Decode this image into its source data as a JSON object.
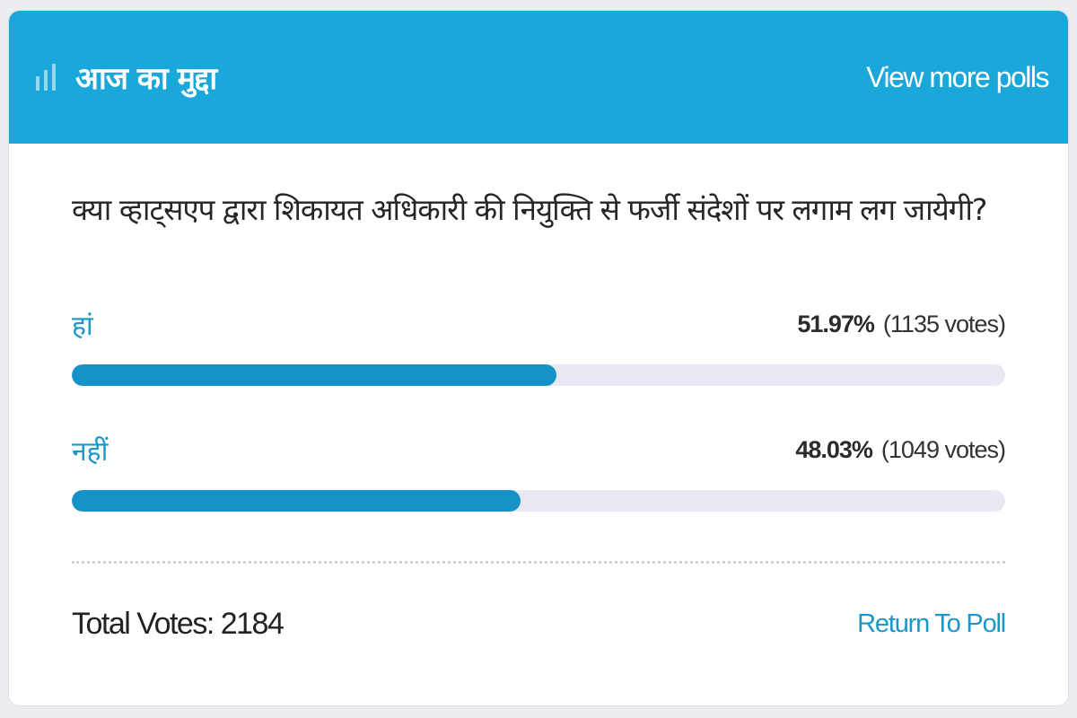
{
  "header": {
    "icon": "poll-bars-icon",
    "title": "आज का मुद्दा",
    "view_more_label": "View more polls"
  },
  "poll": {
    "question": "क्या व्हाट्सएप द्वारा शिकायत अधिकारी की नियुक्ति से फर्जी संदेशों पर लगाम लग जायेगी?",
    "options": [
      {
        "label": "हां",
        "percent_text": "51.97%",
        "votes_text": "(1135 votes)",
        "percent": 51.97
      },
      {
        "label": "नहीं",
        "percent_text": "48.03%",
        "votes_text": "(1049 votes)",
        "percent": 48.03
      }
    ]
  },
  "footer": {
    "total_votes_label": "Total Votes: 2184",
    "return_label": "Return To Poll"
  },
  "colors": {
    "header_bg": "#1aa8db",
    "accent": "#1a96c9",
    "bar_fill": "#1592c6",
    "bar_track": "#e8e9f3"
  }
}
